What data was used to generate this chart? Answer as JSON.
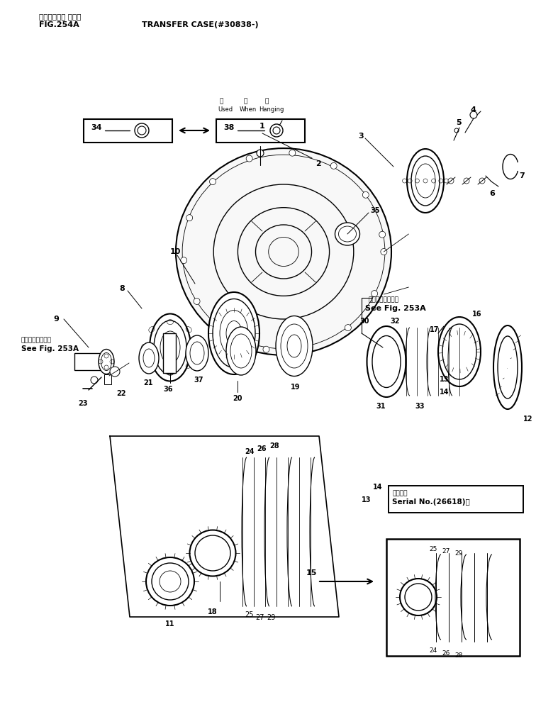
{
  "fig_width": 7.56,
  "fig_height": 9.9,
  "dpi": 100,
  "bg_color": "#ffffff",
  "title_jp": "トランスファ ケース",
  "title_en": "TRANSFER CASE(#30838-)",
  "fig_label": "FIG.254A",
  "note_left_jp": "第２５３Ａ図参照",
  "note_left_en": "See Fig. 253A",
  "note_right_jp": "第２５３Ａ図参照",
  "note_right_en": "See Fig. 253A",
  "header_used": "量",
  "header_when": "備",
  "header_hang": "時",
  "header_used_en": "Used",
  "header_when_en": "When",
  "header_hang_en": "Hanging",
  "serial_jp": "適用号機",
  "serial_en": "Serial No.(26618)～"
}
